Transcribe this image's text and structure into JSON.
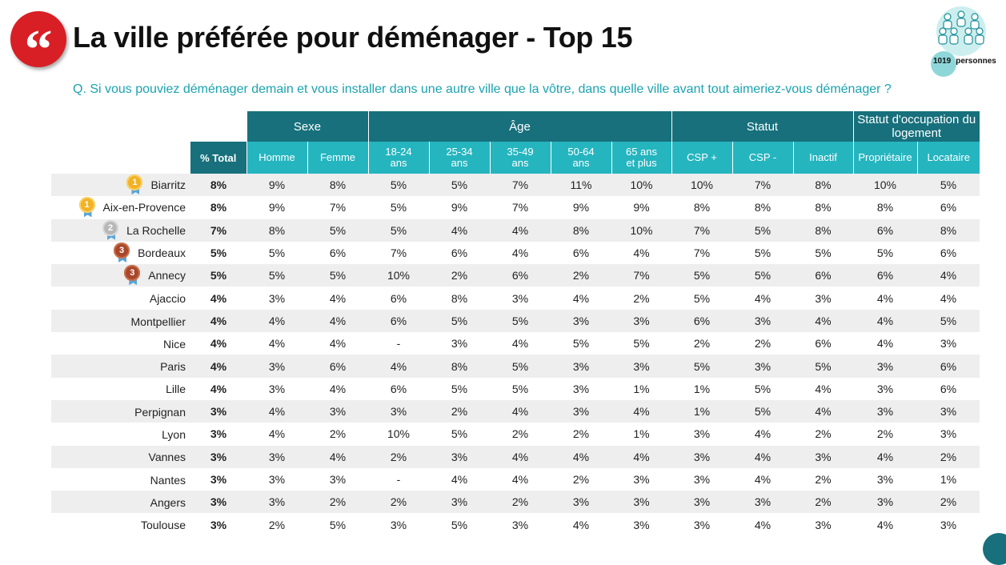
{
  "header": {
    "quote_glyph": "“",
    "title": "La ville préférée pour déménager - Top 15",
    "sample_size": "1019",
    "sample_label": "personnes",
    "question": "Q. Si vous pouviez déménager demain et vous installer dans une autre ville que la vôtre, dans quelle ville avant tout aimeriez-vous déménager ?"
  },
  "colors": {
    "brand_red": "#d81f26",
    "header_dark_teal": "#17707c",
    "header_light_teal": "#25b5bf",
    "question_teal": "#1ba3b0",
    "stripe_grey": "#eeeeee",
    "medal_gold": "#f2b225",
    "medal_silver": "#b7b7b7",
    "medal_bronze": "#a9472a"
  },
  "chart_data": {
    "type": "table",
    "groups": [
      "Sexe",
      "Âge",
      "Statut",
      "Statut d'occupation du logement"
    ],
    "total_header": "% Total",
    "columns": [
      "Homme",
      "Femme",
      "18-24 ans",
      "25-34 ans",
      "35-49 ans",
      "50-64 ans",
      "65 ans et plus",
      "CSP +",
      "CSP -",
      "Inactif",
      "Propriétaire",
      "Locataire"
    ],
    "rows": [
      {
        "city": "Biarritz",
        "medal": "1",
        "medal_type": "gold",
        "total": "8%",
        "values": [
          "9%",
          "8%",
          "5%",
          "5%",
          "7%",
          "11%",
          "10%",
          "10%",
          "7%",
          "8%",
          "10%",
          "5%"
        ]
      },
      {
        "city": "Aix-en-Provence",
        "medal": "1",
        "medal_type": "gold",
        "total": "8%",
        "values": [
          "9%",
          "7%",
          "5%",
          "9%",
          "7%",
          "9%",
          "9%",
          "8%",
          "8%",
          "8%",
          "8%",
          "6%"
        ]
      },
      {
        "city": "La Rochelle",
        "medal": "2",
        "medal_type": "silver",
        "total": "7%",
        "values": [
          "8%",
          "5%",
          "5%",
          "4%",
          "4%",
          "8%",
          "10%",
          "7%",
          "5%",
          "8%",
          "6%",
          "8%"
        ]
      },
      {
        "city": "Bordeaux",
        "medal": "3",
        "medal_type": "bronze",
        "total": "5%",
        "values": [
          "5%",
          "6%",
          "7%",
          "6%",
          "4%",
          "6%",
          "4%",
          "7%",
          "5%",
          "5%",
          "5%",
          "6%"
        ]
      },
      {
        "city": "Annecy",
        "medal": "3",
        "medal_type": "bronze",
        "total": "5%",
        "values": [
          "5%",
          "5%",
          "10%",
          "2%",
          "6%",
          "2%",
          "7%",
          "5%",
          "5%",
          "6%",
          "6%",
          "4%"
        ]
      },
      {
        "city": "Ajaccio",
        "medal": "",
        "medal_type": "",
        "total": "4%",
        "values": [
          "3%",
          "4%",
          "6%",
          "8%",
          "3%",
          "4%",
          "2%",
          "5%",
          "4%",
          "3%",
          "4%",
          "4%"
        ]
      },
      {
        "city": "Montpellier",
        "medal": "",
        "medal_type": "",
        "total": "4%",
        "values": [
          "4%",
          "4%",
          "6%",
          "5%",
          "5%",
          "3%",
          "3%",
          "6%",
          "3%",
          "4%",
          "4%",
          "5%"
        ]
      },
      {
        "city": "Nice",
        "medal": "",
        "medal_type": "",
        "total": "4%",
        "values": [
          "4%",
          "4%",
          "-",
          "3%",
          "4%",
          "5%",
          "5%",
          "2%",
          "2%",
          "6%",
          "4%",
          "3%"
        ]
      },
      {
        "city": "Paris",
        "medal": "",
        "medal_type": "",
        "total": "4%",
        "values": [
          "3%",
          "6%",
          "4%",
          "8%",
          "5%",
          "3%",
          "3%",
          "5%",
          "3%",
          "5%",
          "3%",
          "6%"
        ]
      },
      {
        "city": "Lille",
        "medal": "",
        "medal_type": "",
        "total": "4%",
        "values": [
          "3%",
          "4%",
          "6%",
          "5%",
          "5%",
          "3%",
          "1%",
          "1%",
          "5%",
          "4%",
          "3%",
          "6%"
        ]
      },
      {
        "city": "Perpignan",
        "medal": "",
        "medal_type": "",
        "total": "3%",
        "values": [
          "4%",
          "3%",
          "3%",
          "2%",
          "4%",
          "3%",
          "4%",
          "1%",
          "5%",
          "4%",
          "3%",
          "3%"
        ]
      },
      {
        "city": "Lyon",
        "medal": "",
        "medal_type": "",
        "total": "3%",
        "values": [
          "4%",
          "2%",
          "10%",
          "5%",
          "2%",
          "2%",
          "1%",
          "3%",
          "4%",
          "2%",
          "2%",
          "3%"
        ]
      },
      {
        "city": "Vannes",
        "medal": "",
        "medal_type": "",
        "total": "3%",
        "values": [
          "3%",
          "4%",
          "2%",
          "3%",
          "4%",
          "4%",
          "4%",
          "3%",
          "4%",
          "3%",
          "4%",
          "2%"
        ]
      },
      {
        "city": "Nantes",
        "medal": "",
        "medal_type": "",
        "total": "3%",
        "values": [
          "3%",
          "3%",
          "-",
          "4%",
          "4%",
          "2%",
          "3%",
          "3%",
          "4%",
          "2%",
          "3%",
          "1%"
        ]
      },
      {
        "city": "Angers",
        "medal": "",
        "medal_type": "",
        "total": "3%",
        "values": [
          "3%",
          "2%",
          "2%",
          "3%",
          "2%",
          "3%",
          "3%",
          "3%",
          "3%",
          "2%",
          "3%",
          "2%"
        ]
      },
      {
        "city": "Toulouse",
        "medal": "",
        "medal_type": "",
        "total": "3%",
        "values": [
          "2%",
          "5%",
          "3%",
          "5%",
          "3%",
          "4%",
          "3%",
          "3%",
          "4%",
          "3%",
          "4%",
          "3%"
        ]
      }
    ]
  }
}
